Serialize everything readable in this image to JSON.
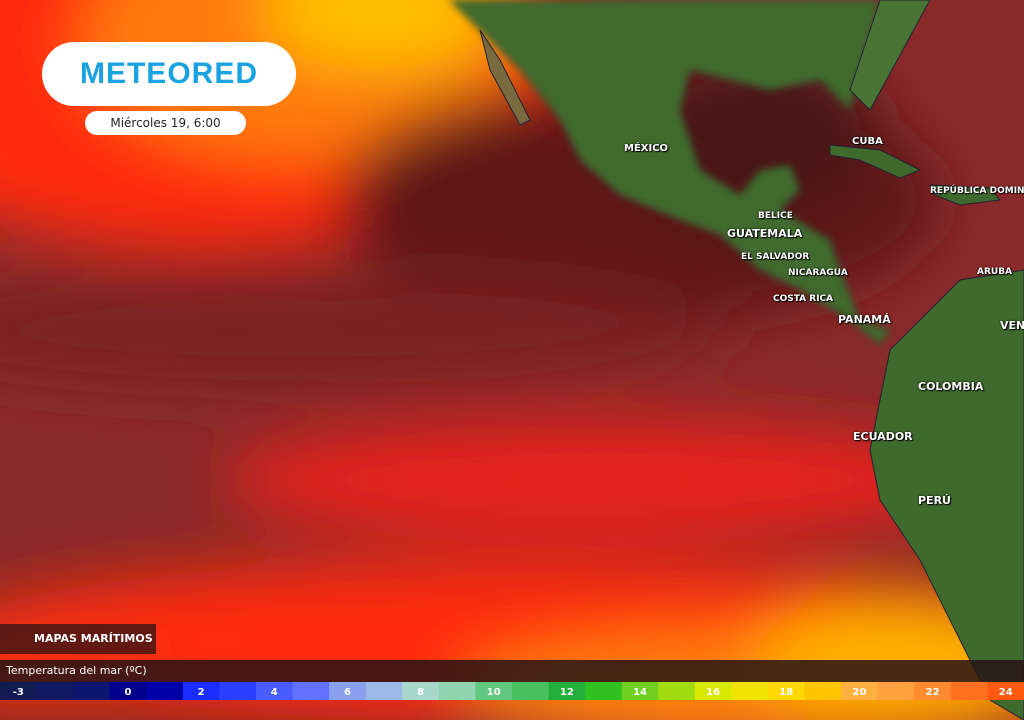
{
  "header": {
    "logo": "METEORED",
    "date": "Miércoles 19, 6:00"
  },
  "badge": {
    "label": "MAPAS MARÍTIMOS"
  },
  "labels": [
    {
      "text": "MÉXICO"
    },
    {
      "text": "CUBA"
    },
    {
      "text": "REPÚBLICA DOMINI"
    },
    {
      "text": "BELICE"
    },
    {
      "text": "GUATEMALA"
    },
    {
      "text": "EL SALVADOR"
    },
    {
      "text": "NICARAGUA"
    },
    {
      "text": "COSTA RICA"
    },
    {
      "text": "PANAMÁ"
    },
    {
      "text": "ARUBA"
    },
    {
      "text": "VEN"
    },
    {
      "text": "COLOMBIA"
    },
    {
      "text": "ECUADOR"
    },
    {
      "text": "PERÚ"
    }
  ],
  "legend": {
    "title": "Temperatura del mar (ºC)",
    "ticks": [
      -3,
      0,
      2,
      4,
      6,
      8,
      10,
      12,
      14,
      16,
      18,
      20,
      22,
      24
    ],
    "colors": [
      "#121a52",
      "#0f1860",
      "#0c1670",
      "#00008c",
      "#0000a8",
      "#1a2cff",
      "#2a40ff",
      "#4a5cff",
      "#6070ff",
      "#8aa0ee",
      "#9ab8e8",
      "#a8d8cc",
      "#90d4b0",
      "#60c880",
      "#48c060",
      "#22b03a",
      "#30c020",
      "#70d020",
      "#a0dc10",
      "#d8e800",
      "#f0e400",
      "#ffd800",
      "#ffc400",
      "#ffb040",
      "#ffa040",
      "#ff8a30",
      "#ff7020",
      "#ff5a10"
    ]
  }
}
